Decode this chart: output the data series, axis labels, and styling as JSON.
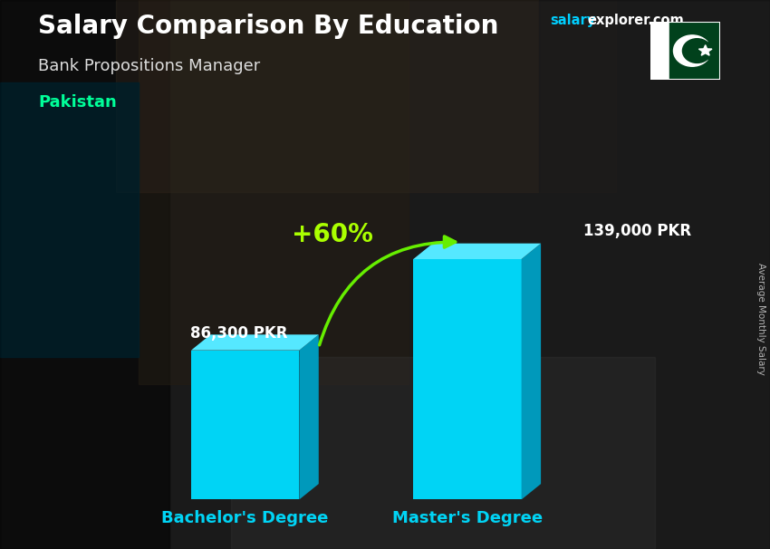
{
  "title": "Salary Comparison By Education",
  "subtitle": "Bank Propositions Manager",
  "country": "Pakistan",
  "ylabel": "Average Monthly Salary",
  "categories": [
    "Bachelor's Degree",
    "Master's Degree"
  ],
  "values": [
    86300,
    139000
  ],
  "value_labels": [
    "86,300 PKR",
    "139,000 PKR"
  ],
  "pct_change": "+60%",
  "bar_color_main": "#00d4f5",
  "bar_color_dark": "#0099bb",
  "bar_color_light": "#55e8ff",
  "title_color": "#ffffff",
  "subtitle_color": "#dddddd",
  "country_color": "#00ff99",
  "watermark_salary_color": "#00cfff",
  "watermark_explorer_color": "#ffffff",
  "xticklabel_color": "#00d4f5",
  "value_label_color": "#ffffff",
  "pct_color": "#aaff00",
  "arrow_color": "#66ee00",
  "ylim": [
    0,
    165000
  ],
  "figsize": [
    8.5,
    6.06
  ],
  "dpi": 100
}
